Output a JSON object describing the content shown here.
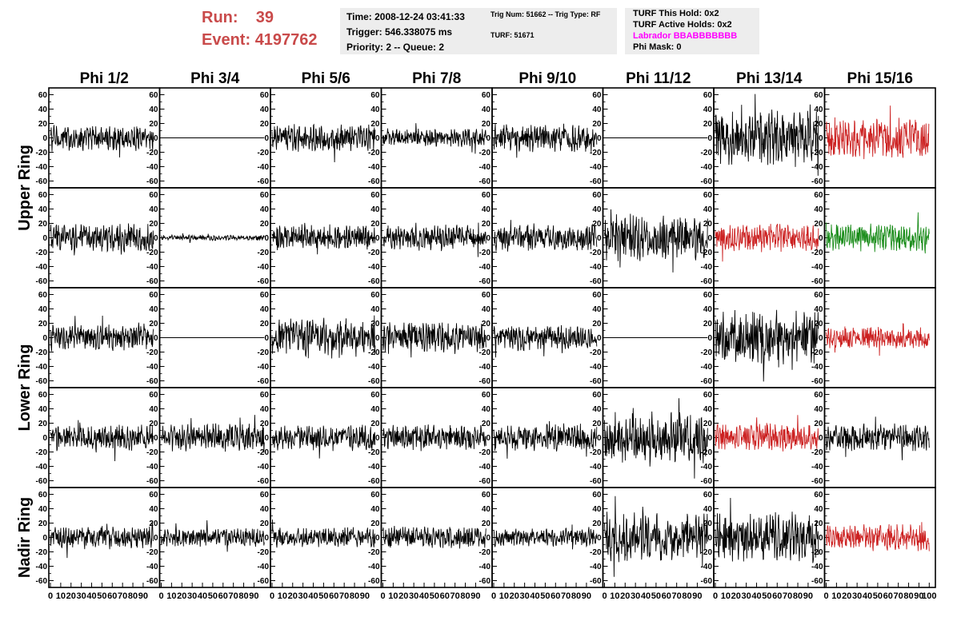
{
  "header": {
    "run_label": "Run:",
    "run_value": "39",
    "event_label": "Event:",
    "event_value": "4197762"
  },
  "info_panel_1": {
    "time": "Time: 2008-12-24 03:41:33",
    "trigger": "Trigger: 546.338075 ms",
    "priority": "Priority: 2 -- Queue: 2"
  },
  "info_panel_2": {
    "trig": "Trig Num: 51662 -- Trig Type: RF",
    "turf": "TURF: 51671"
  },
  "info_panel_3": {
    "this_hold": "TURF This Hold: 0x2",
    "active_holds": "TURF Active Holds: 0x2",
    "labrador": "Labrador BBABBBBBBB",
    "phi_mask": "Phi Mask: 0"
  },
  "colors": {
    "header_red": "#c94a4a",
    "labrador_magenta": "#ff00ff",
    "trace_black": "#000000",
    "trace_red": "#cc2222",
    "trace_green": "#1a8c1a"
  },
  "chart_data": {
    "type": "line",
    "columns": [
      "Phi 1/2",
      "Phi 3/4",
      "Phi 5/6",
      "Phi 7/8",
      "Phi 9/10",
      "Phi 11/12",
      "Phi 13/14",
      "Phi 15/16"
    ],
    "ring_labels": [
      {
        "text": "Upper Ring",
        "rows": [
          0,
          1
        ]
      },
      {
        "text": "Lower Ring",
        "rows": [
          2,
          3
        ]
      },
      {
        "text": "Nadir Ring",
        "rows": [
          4
        ]
      }
    ],
    "ylim": [
      -65,
      65
    ],
    "yticks": [
      -60,
      -40,
      -20,
      0,
      20,
      40,
      60
    ],
    "xlim": [
      0,
      100
    ],
    "xticks": [
      0,
      10,
      20,
      30,
      40,
      50,
      60,
      70,
      80,
      90,
      100
    ],
    "samples": 260,
    "trace_colors": [
      [
        "black",
        "black",
        "black",
        "black",
        "black",
        "black",
        "black",
        "red"
      ],
      [
        "black",
        "black",
        "black",
        "black",
        "black",
        "black",
        "red",
        "green"
      ],
      [
        "black",
        "black",
        "black",
        "black",
        "black",
        "black",
        "black",
        "red"
      ],
      [
        "black",
        "black",
        "black",
        "black",
        "black",
        "black",
        "red",
        "black"
      ],
      [
        "black",
        "black",
        "black",
        "black",
        "black",
        "black",
        "black",
        "red"
      ]
    ],
    "amplitudes": [
      [
        14,
        0,
        15,
        10,
        15,
        0,
        30,
        22
      ],
      [
        15,
        3,
        14,
        14,
        15,
        25,
        15,
        15
      ],
      [
        14,
        0,
        22,
        17,
        14,
        0,
        30,
        12
      ],
      [
        14,
        15,
        14,
        14,
        15,
        28,
        15,
        15
      ],
      [
        12,
        10,
        11,
        12,
        10,
        27,
        27,
        15
      ]
    ]
  }
}
